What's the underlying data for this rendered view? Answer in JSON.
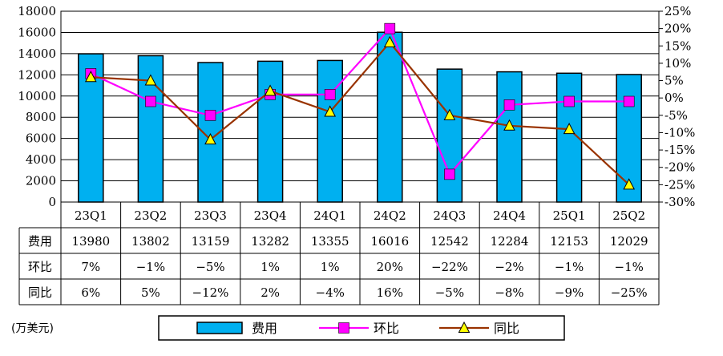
{
  "chart_data": {
    "type": "bar",
    "categories": [
      "23Q1",
      "23Q2",
      "23Q3",
      "23Q4",
      "24Q1",
      "24Q2",
      "24Q3",
      "24Q4",
      "25Q1",
      "25Q2"
    ],
    "ylim_left": [
      0,
      18000
    ],
    "yticks_left": [
      0,
      2000,
      4000,
      6000,
      8000,
      10000,
      12000,
      14000,
      16000,
      18000
    ],
    "ylim_right": [
      -30,
      25
    ],
    "yticks_right": [
      -30,
      -25,
      -20,
      -15,
      -10,
      -5,
      0,
      5,
      10,
      15,
      20,
      25
    ],
    "grid": true,
    "unit_label": "(万美元)",
    "series": [
      {
        "name": "费用",
        "kind": "bar",
        "axis": "left",
        "color": "#00B0F0",
        "values": [
          13980,
          13802,
          13159,
          13282,
          13355,
          16016,
          12542,
          12284,
          12153,
          12029
        ]
      },
      {
        "name": "环比",
        "kind": "line",
        "axis": "right",
        "color": "#FF00FF",
        "marker": "square",
        "values": [
          7,
          -1,
          -5,
          1,
          1,
          20,
          -22,
          -2,
          -1,
          -1
        ]
      },
      {
        "name": "同比",
        "kind": "line",
        "axis": "right",
        "color": "#993300",
        "marker": "triangle",
        "marker_color": "#FFFF00",
        "values": [
          6,
          5,
          -12,
          2,
          -4,
          16,
          -5,
          -8,
          -9,
          -25
        ]
      }
    ],
    "table": {
      "rows": [
        {
          "label": "费用",
          "cells": [
            "13980",
            "13802",
            "13159",
            "13282",
            "13355",
            "16016",
            "12542",
            "12284",
            "12153",
            "12029"
          ]
        },
        {
          "label": "环比",
          "cells": [
            "7%",
            "−1%",
            "−5%",
            "1%",
            "1%",
            "20%",
            "−22%",
            "−2%",
            "−1%",
            "−1%"
          ]
        },
        {
          "label": "同比",
          "cells": [
            "6%",
            "5%",
            "−12%",
            "2%",
            "−4%",
            "16%",
            "−5%",
            "−8%",
            "−9%",
            "−25%"
          ]
        }
      ]
    },
    "legend_position": "bottom"
  }
}
